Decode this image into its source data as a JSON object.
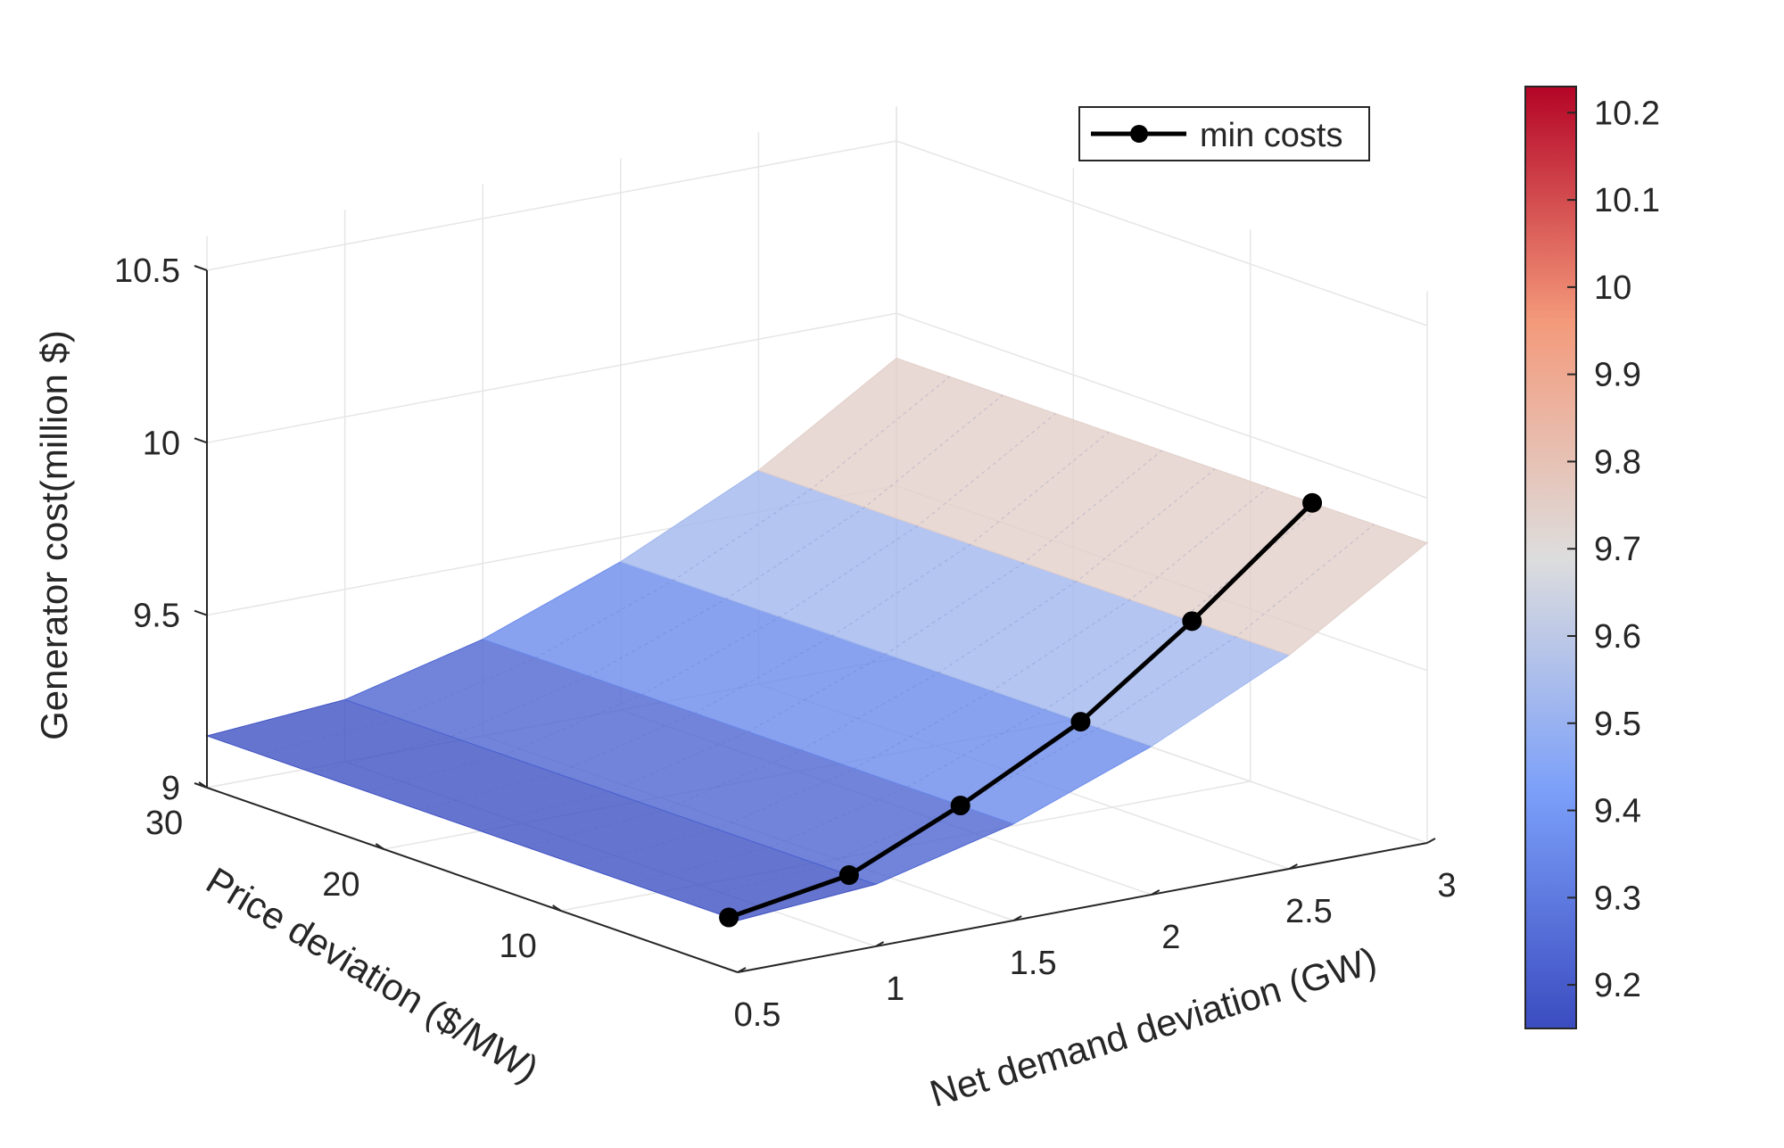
{
  "chart_data": {
    "type": "surface3d",
    "xlabel": "Net demand deviation (GW)",
    "ylabel": "Price deviation ($/MW)",
    "zlabel": "Generator cost(million $)",
    "xticks": [
      "0.5",
      "1",
      "1.5",
      "2",
      "2.5",
      "3"
    ],
    "xtick_values": [
      0.5,
      1,
      1.5,
      2,
      2.5,
      3
    ],
    "yticks": [
      "10",
      "20",
      "30"
    ],
    "ytick_values": [
      10,
      20,
      30
    ],
    "zticks": [
      "9",
      "9.5",
      "10",
      "10.5"
    ],
    "ztick_values": [
      9,
      9.5,
      10,
      10.5
    ],
    "xlim": [
      0.5,
      3
    ],
    "ylim": [
      0,
      30
    ],
    "zlim": [
      9,
      10.6
    ],
    "surface": {
      "x": [
        0.5,
        1.0,
        1.5,
        2.0,
        2.5,
        3.0
      ],
      "cost_by_x": [
        9.15,
        9.18,
        9.28,
        9.43,
        9.62,
        9.87
      ],
      "constant_along": "y"
    },
    "series": [
      {
        "name": "min costs",
        "color": "#000000",
        "points": [
          {
            "x": 0.5,
            "y": 0.5,
            "z": 9.15
          },
          {
            "x": 1.0,
            "y": 1.5,
            "z": 9.18
          },
          {
            "x": 1.5,
            "y": 3.0,
            "z": 9.28
          },
          {
            "x": 2.0,
            "y": 4.0,
            "z": 9.43
          },
          {
            "x": 2.5,
            "y": 5.5,
            "z": 9.62
          },
          {
            "x": 3.0,
            "y": 6.5,
            "z": 9.87
          }
        ]
      }
    ],
    "colorbar": {
      "ticks": [
        "9.2",
        "9.3",
        "9.4",
        "9.5",
        "9.6",
        "9.7",
        "9.8",
        "9.9",
        "10",
        "10.1",
        "10.2"
      ],
      "tick_values": [
        9.2,
        9.3,
        9.4,
        9.5,
        9.6,
        9.7,
        9.8,
        9.9,
        10.0,
        10.1,
        10.2
      ],
      "range": [
        9.15,
        10.23
      ],
      "colormap_stops": [
        {
          "v": 0.0,
          "c": "#3B4CC0"
        },
        {
          "v": 0.25,
          "c": "#7B9FF9"
        },
        {
          "v": 0.5,
          "c": "#DDDDDD"
        },
        {
          "v": 0.75,
          "c": "#F49A7B"
        },
        {
          "v": 1.0,
          "c": "#B40426"
        }
      ]
    },
    "legend": {
      "label": "min costs",
      "position": "top-right"
    },
    "grid": true
  }
}
